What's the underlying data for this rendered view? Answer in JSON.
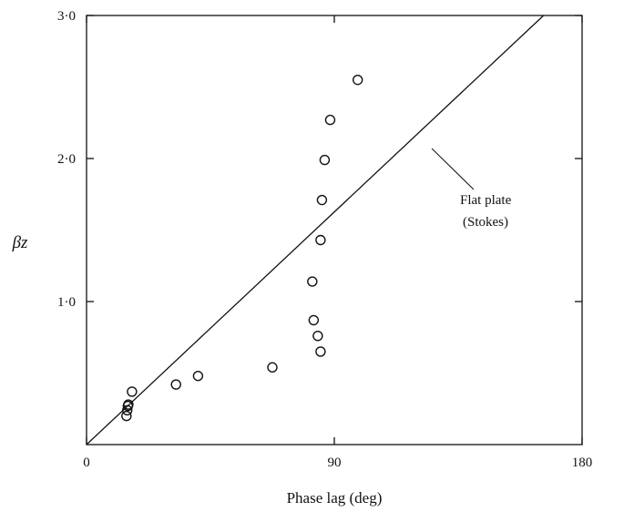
{
  "chart_data": {
    "type": "scatter",
    "title": "",
    "xlabel": "Phase lag (deg)",
    "ylabel": "βz",
    "xlim": [
      0,
      180
    ],
    "ylim": [
      0,
      3.0
    ],
    "xticks": [
      0,
      90,
      180
    ],
    "xtick_labels": [
      "0",
      "90",
      "180"
    ],
    "yticks": [
      1.0,
      2.0,
      3.0
    ],
    "ytick_labels": [
      "1·0",
      "2·0",
      "3·0"
    ],
    "grid": false,
    "series": [
      {
        "marker": "open-circle",
        "points": [
          {
            "x": 14.5,
            "y": 0.2
          },
          {
            "x": 14.8,
            "y": 0.24
          },
          {
            "x": 15.0,
            "y": 0.27
          },
          {
            "x": 15.2,
            "y": 0.28
          },
          {
            "x": 16.5,
            "y": 0.37
          },
          {
            "x": 32.5,
            "y": 0.42
          },
          {
            "x": 40.5,
            "y": 0.48
          },
          {
            "x": 67.5,
            "y": 0.54
          },
          {
            "x": 82.0,
            "y": 1.14
          },
          {
            "x": 82.5,
            "y": 0.87
          },
          {
            "x": 84.0,
            "y": 0.76
          },
          {
            "x": 85.0,
            "y": 0.65
          },
          {
            "x": 85.0,
            "y": 1.43
          },
          {
            "x": 85.5,
            "y": 1.71
          },
          {
            "x": 86.5,
            "y": 1.99
          },
          {
            "x": 88.5,
            "y": 2.27
          },
          {
            "x": 98.5,
            "y": 2.55
          }
        ]
      }
    ],
    "reference_line": {
      "label_lines": [
        "Flat plate",
        "(Stokes)"
      ],
      "points": [
        {
          "x": 0,
          "y": 0
        },
        {
          "x": 166,
          "y": 3.0
        }
      ]
    }
  }
}
